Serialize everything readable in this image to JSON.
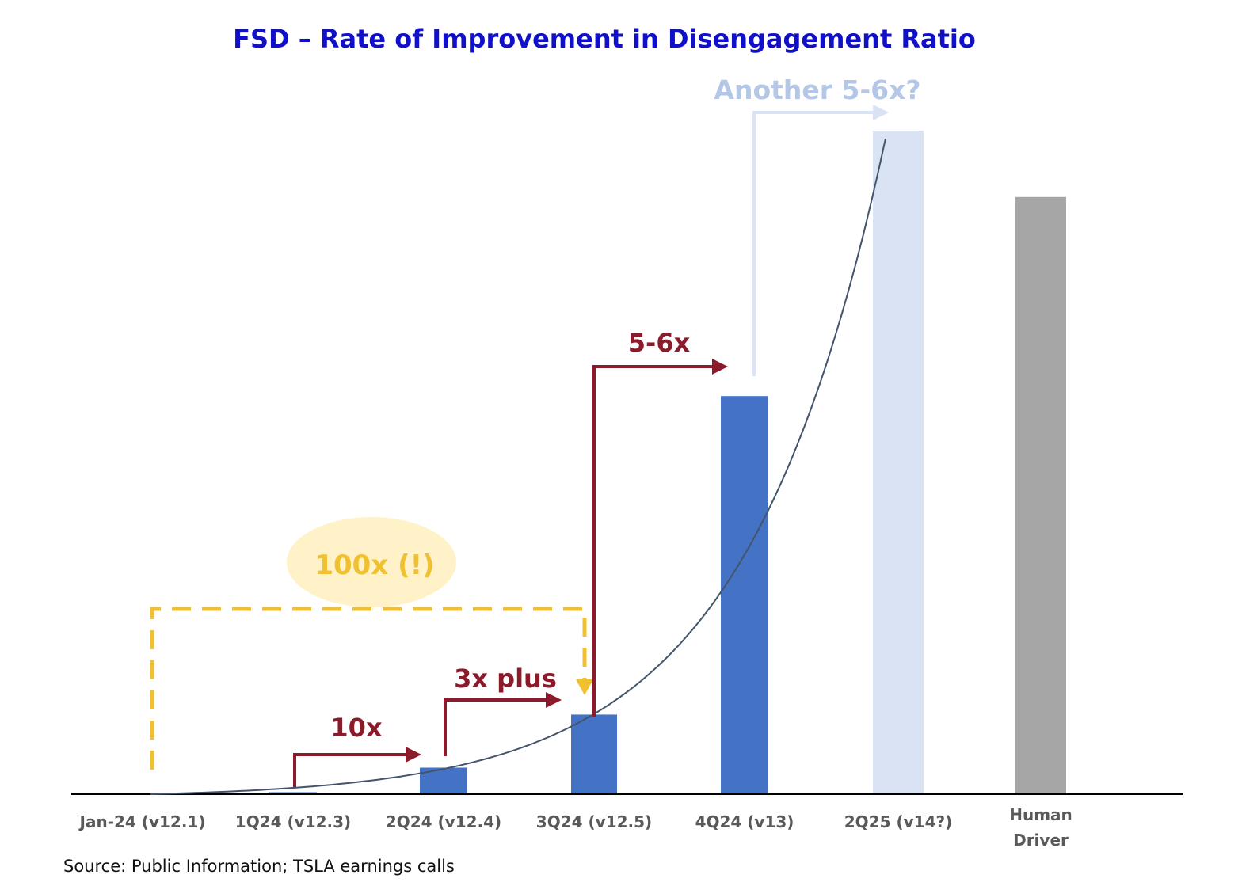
{
  "chart_data": {
    "type": "bar",
    "title": "FSD – Rate of Improvement in Disengagement Ratio",
    "xlabel": "",
    "ylabel": "",
    "ylim": [
      0,
      100
    ],
    "grid": false,
    "legend": "none",
    "categories": [
      [
        "Jan-24 (v12.1)"
      ],
      [
        "1Q24 (v12.3)"
      ],
      [
        "2Q24 (v12.4)"
      ],
      [
        "3Q24 (v12.5)"
      ],
      [
        "4Q24 (v13)"
      ],
      [
        "2Q25 (v14?)"
      ],
      [
        "Human",
        "Driver"
      ]
    ],
    "values": [
      0.05,
      0.3,
      4,
      12,
      60,
      100,
      90
    ],
    "bar_colors": [
      "#4472c4",
      "#4472c4",
      "#4472c4",
      "#4472c4",
      "#4472c4",
      "#dae3f3",
      "#a6a6a6"
    ],
    "trend_curve": true,
    "annotations": {
      "step_10x": "10x",
      "step_3x": "3x plus",
      "step_5_6x": "5-6x",
      "step_future": "Another 5-6x?",
      "bracket_100x": "100x (!)"
    },
    "colors": {
      "title": "#1010c8",
      "step_arrows": "#8b1a2b",
      "future_arrow": "#dae3f3",
      "future_text": "#b4c7e7",
      "bracket": "#f0c030",
      "bracket_ellipse": "#fff2c8",
      "bracket_text": "#f0c030",
      "curve": "#44546a",
      "axis": "#000000"
    },
    "source": "Source: Public Information; TSLA earnings calls"
  }
}
